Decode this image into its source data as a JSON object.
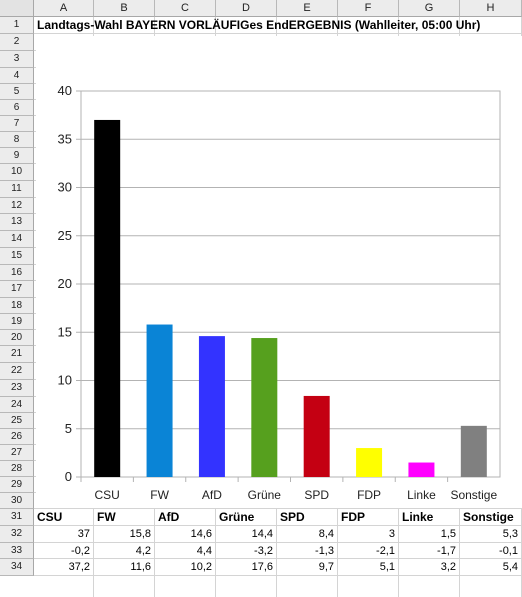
{
  "sheet": {
    "columns": [
      "A",
      "B",
      "C",
      "D",
      "E",
      "F",
      "G",
      "H"
    ],
    "rows": [
      "1",
      "2",
      "3",
      "4",
      "5",
      "6",
      "7",
      "8",
      "9",
      "10",
      "11",
      "12",
      "13",
      "14",
      "15",
      "16",
      "17",
      "18",
      "19",
      "20",
      "21",
      "22",
      "23",
      "24",
      "25",
      "26",
      "27",
      "28",
      "29",
      "30",
      "31",
      "32",
      "33",
      "34"
    ]
  },
  "title_cell": "Landtags-Wahl BAYERN VORLÄUFIGes EndERGEBNIS (Wahlleiter, 05:00 Uhr)",
  "table": {
    "header": [
      "CSU",
      "FW",
      "AfD",
      "Grüne",
      "SPD",
      "FDP",
      "Linke",
      "Sonstige"
    ],
    "rows": [
      [
        "37",
        "15,8",
        "14,6",
        "14,4",
        "8,4",
        "3",
        "1,5",
        "5,3"
      ],
      [
        "-0,2",
        "4,2",
        "4,4",
        "-3,2",
        "-1,3",
        "-2,1",
        "-1,7",
        "-0,1"
      ],
      [
        "37,2",
        "11,6",
        "10,2",
        "17,6",
        "9,7",
        "5,1",
        "3,2",
        "5,4"
      ]
    ]
  },
  "chart_data": {
    "type": "bar",
    "categories": [
      "CSU",
      "FW",
      "AfD",
      "Grüne",
      "SPD",
      "FDP",
      "Linke",
      "Sonstige"
    ],
    "values": [
      37,
      15.8,
      14.6,
      14.4,
      8.4,
      3,
      1.5,
      5.3
    ],
    "colors": [
      "#000000",
      "#0a84d6",
      "#3333ff",
      "#56a01e",
      "#c40012",
      "#ffff00",
      "#ff00ff",
      "#808080"
    ],
    "ylim": [
      0,
      40
    ],
    "yticks": [
      "0",
      "5",
      "10",
      "15",
      "20",
      "25",
      "30",
      "35",
      "40"
    ],
    "grid": true,
    "title": "",
    "xlabel": "",
    "ylabel": ""
  }
}
